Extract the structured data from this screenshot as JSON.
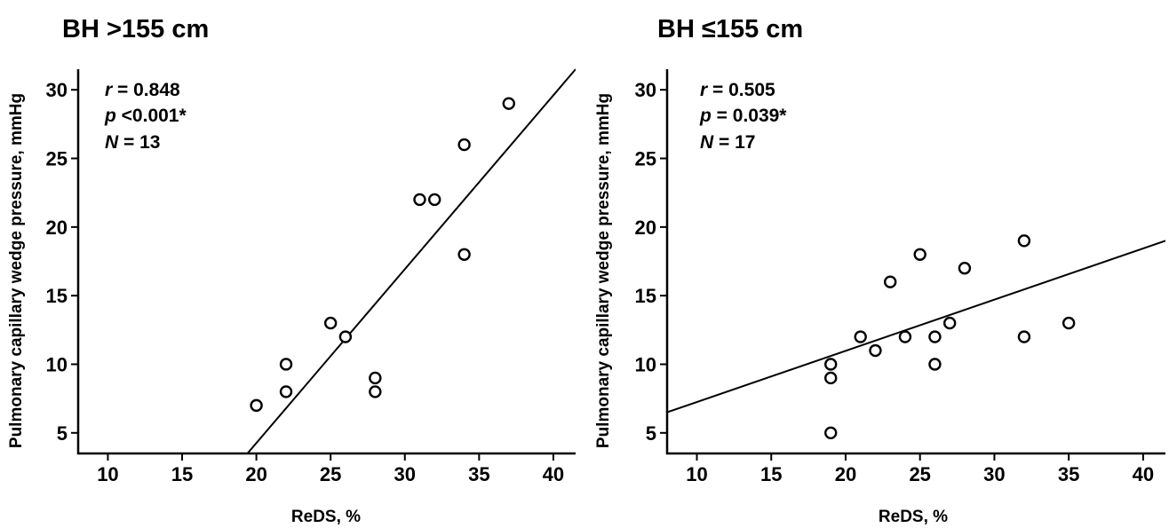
{
  "chart_data": [
    {
      "type": "scatter",
      "title": "BH >155 cm",
      "xlabel": "ReDS, %",
      "ylabel": "Pulmonary capillary wedge pressure, mmHg",
      "xlim": [
        8,
        41.5
      ],
      "ylim": [
        3.5,
        31.5
      ],
      "xticks": [
        10,
        15,
        20,
        25,
        30,
        35,
        40
      ],
      "yticks": [
        5,
        10,
        15,
        20,
        25,
        30
      ],
      "stats": {
        "r_label": "r",
        "r_value": " = 0.848",
        "p_label": "p",
        "p_value": " <0.001*",
        "n_label": "N",
        "n_value": " = 13"
      },
      "points": [
        {
          "x": 20,
          "y": 7
        },
        {
          "x": 22,
          "y": 8
        },
        {
          "x": 22,
          "y": 10
        },
        {
          "x": 25,
          "y": 13
        },
        {
          "x": 26,
          "y": 12
        },
        {
          "x": 28,
          "y": 8
        },
        {
          "x": 28,
          "y": 9
        },
        {
          "x": 31,
          "y": 22
        },
        {
          "x": 32,
          "y": 22
        },
        {
          "x": 34,
          "y": 18
        },
        {
          "x": 34,
          "y": 26
        },
        {
          "x": 37,
          "y": 29
        }
      ],
      "fit_line": {
        "x": [
          19.4,
          41.5
        ],
        "y": [
          3.5,
          31.5
        ]
      }
    },
    {
      "type": "scatter",
      "title": "BH ≤155 cm",
      "xlabel": "ReDS, %",
      "ylabel": "Pulmonary capillary wedge pressure, mmHg",
      "xlim": [
        8,
        41.5
      ],
      "ylim": [
        3.5,
        31.5
      ],
      "xticks": [
        10,
        15,
        20,
        25,
        30,
        35,
        40
      ],
      "yticks": [
        5,
        10,
        15,
        20,
        25,
        30
      ],
      "stats": {
        "r_label": "r",
        "r_value": " = 0.505",
        "p_label": "p",
        "p_value": " = 0.039*",
        "n_label": "N",
        "n_value": " = 17"
      },
      "points": [
        {
          "x": 19,
          "y": 5
        },
        {
          "x": 19,
          "y": 9
        },
        {
          "x": 19,
          "y": 10
        },
        {
          "x": 21,
          "y": 12
        },
        {
          "x": 22,
          "y": 11
        },
        {
          "x": 23,
          "y": 16
        },
        {
          "x": 24,
          "y": 12
        },
        {
          "x": 25,
          "y": 18
        },
        {
          "x": 26,
          "y": 10
        },
        {
          "x": 26,
          "y": 12
        },
        {
          "x": 27,
          "y": 13
        },
        {
          "x": 28,
          "y": 17
        },
        {
          "x": 32,
          "y": 12
        },
        {
          "x": 32,
          "y": 19
        },
        {
          "x": 35,
          "y": 13
        }
      ],
      "fit_line": {
        "x": [
          8,
          41.5
        ],
        "y": [
          6.5,
          19
        ]
      }
    }
  ]
}
